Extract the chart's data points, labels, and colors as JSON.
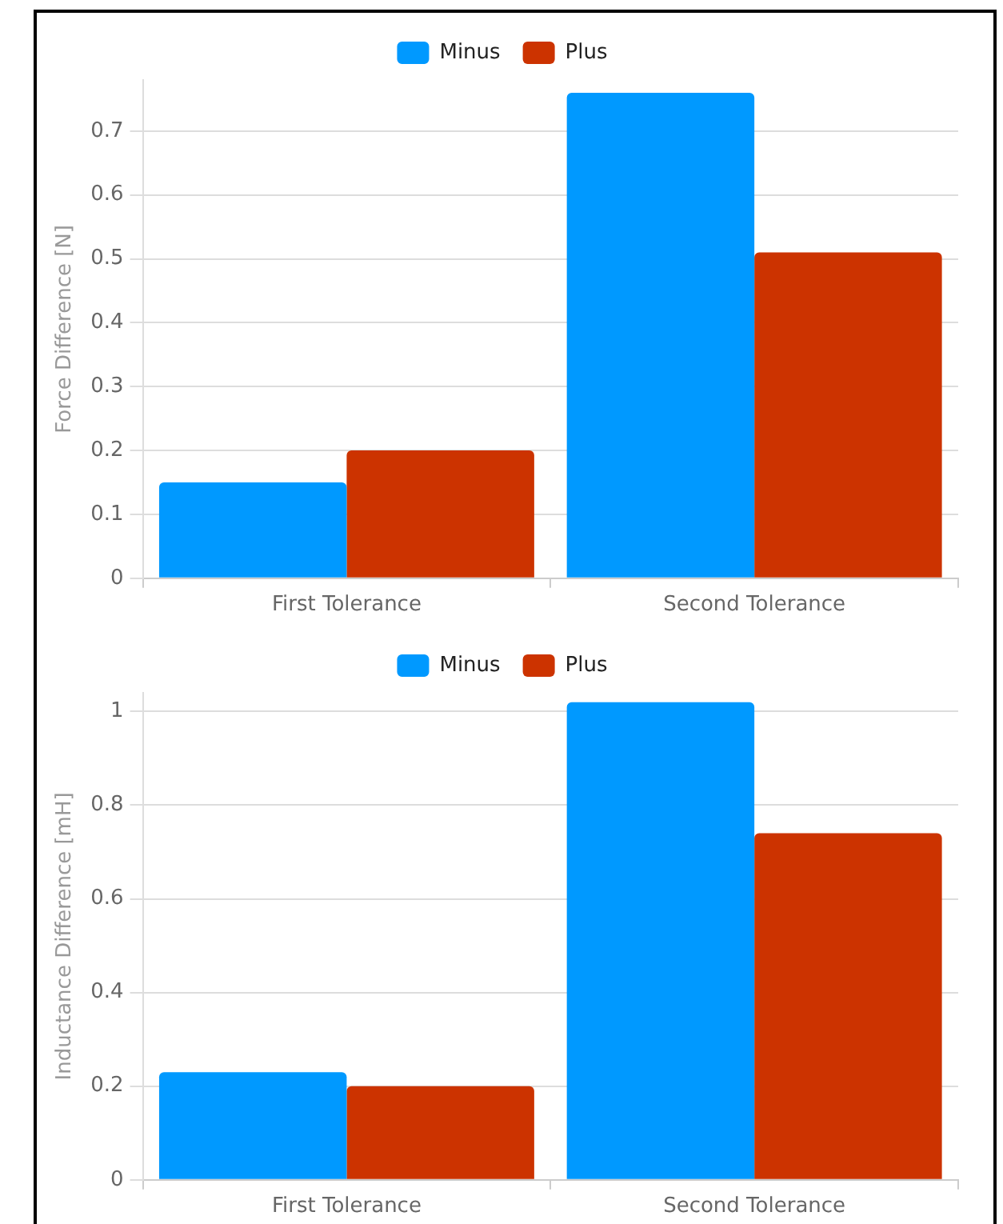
{
  "chart_data": [
    {
      "type": "bar",
      "ylabel": "Force Difference [N]",
      "categories": [
        "First Tolerance",
        "Second Tolerance"
      ],
      "series": [
        {
          "name": "Minus",
          "color": "#0099ff",
          "values": [
            0.15,
            0.76
          ]
        },
        {
          "name": "Plus",
          "color": "#cc3300",
          "values": [
            0.2,
            0.51
          ]
        }
      ],
      "ylim": [
        0,
        0.78
      ],
      "yticks": [
        0,
        0.1,
        0.2,
        0.3,
        0.4,
        0.5,
        0.6,
        0.7
      ],
      "grid": "y",
      "legend": "top"
    },
    {
      "type": "bar",
      "ylabel": "Inductance Difference [mH]",
      "categories": [
        "First Tolerance",
        "Second Tolerance"
      ],
      "series": [
        {
          "name": "Minus",
          "color": "#0099ff",
          "values": [
            0.23,
            1.02
          ]
        },
        {
          "name": "Plus",
          "color": "#cc3300",
          "values": [
            0.2,
            0.74
          ]
        }
      ],
      "ylim": [
        0,
        1.04
      ],
      "yticks": [
        0,
        0.2,
        0.4,
        0.6,
        0.8,
        1
      ],
      "grid": "y",
      "legend": "top"
    }
  ]
}
